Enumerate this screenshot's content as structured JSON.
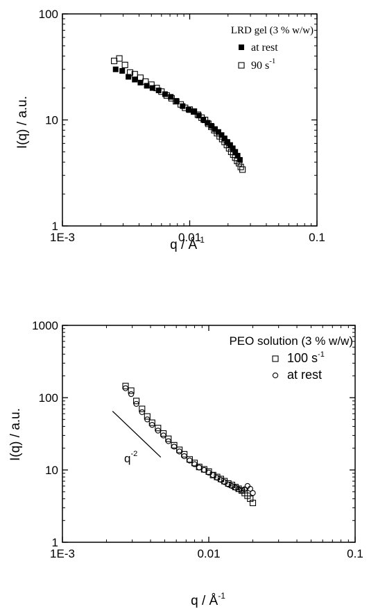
{
  "chart_data": [
    {
      "type": "scatter",
      "xscale": "log",
      "yscale": "log",
      "xlim": [
        0.001,
        0.1
      ],
      "ylim": [
        1,
        100
      ],
      "xlabel": "q / Å",
      "xlabel_sup": "-1",
      "ylabel": "I(q) / a.u.",
      "xticks": [
        {
          "value": 0.001,
          "label": "1E-3"
        },
        {
          "value": 0.01,
          "label": "0.01"
        },
        {
          "value": 0.1,
          "label": "0.1"
        }
      ],
      "yticks": [
        {
          "value": 1,
          "label": "1"
        },
        {
          "value": 10,
          "label": "10"
        },
        {
          "value": 100,
          "label": "100"
        }
      ],
      "legend": {
        "title": "LRD gel (3 % w/w)",
        "placement": "top-right",
        "entries": [
          {
            "series": 0,
            "text": "at rest",
            "sup": ""
          },
          {
            "series": 1,
            "text": "90 s",
            "sup": "-1"
          }
        ]
      },
      "series": [
        {
          "marker": "filled-square",
          "x": [
            0.00262,
            0.00295,
            0.0033,
            0.0037,
            0.0041,
            0.0046,
            0.0051,
            0.0057,
            0.0064,
            0.0071,
            0.0079,
            0.0088,
            0.0098,
            0.0108,
            0.0118,
            0.0128,
            0.0138,
            0.0148,
            0.0158,
            0.0168,
            0.0178,
            0.0188,
            0.0198,
            0.0208,
            0.0218,
            0.0228,
            0.0238,
            0.0248
          ],
          "y": [
            30,
            29,
            25.5,
            24,
            22.5,
            21,
            20,
            19,
            17.5,
            16.5,
            15,
            13.5,
            12.5,
            12,
            11,
            10,
            9.4,
            8.8,
            8.2,
            7.7,
            7.2,
            6.7,
            6.2,
            5.8,
            5.4,
            5.0,
            4.6,
            4.2
          ]
        },
        {
          "marker": "open-square",
          "x": [
            0.00255,
            0.0028,
            0.0031,
            0.0034,
            0.0037,
            0.0041,
            0.0045,
            0.005,
            0.0055,
            0.006,
            0.0066,
            0.0072,
            0.0078,
            0.0085,
            0.0092,
            0.01,
            0.0108,
            0.0116,
            0.0124,
            0.0132,
            0.014,
            0.0148,
            0.0156,
            0.0164,
            0.0172,
            0.018,
            0.0188,
            0.0196,
            0.0204,
            0.0212,
            0.022,
            0.0228,
            0.0236,
            0.0244,
            0.0252,
            0.026
          ],
          "y": [
            36,
            38,
            33,
            28,
            27,
            25,
            23,
            21.5,
            20,
            18.5,
            17,
            16,
            15,
            14,
            13,
            12.5,
            12,
            11.2,
            10.5,
            10,
            9.2,
            8.6,
            8.0,
            7.5,
            7.0,
            6.6,
            6.2,
            5.8,
            5.4,
            5.0,
            4.7,
            4.4,
            4.1,
            3.9,
            3.6,
            3.4
          ]
        }
      ]
    },
    {
      "type": "scatter",
      "xscale": "log",
      "yscale": "log",
      "xlim": [
        0.001,
        0.1
      ],
      "ylim": [
        1,
        1000
      ],
      "xlabel": "q / Å",
      "xlabel_sup": "-1",
      "ylabel": "I(q) / a.u.",
      "xticks": [
        {
          "value": 0.001,
          "label": "1E-3"
        },
        {
          "value": 0.01,
          "label": "0.01"
        },
        {
          "value": 0.1,
          "label": "0.1"
        }
      ],
      "yticks": [
        {
          "value": 1,
          "label": "1"
        },
        {
          "value": 10,
          "label": "10"
        },
        {
          "value": 100,
          "label": "100"
        },
        {
          "value": 1000,
          "label": "1000"
        }
      ],
      "legend": {
        "title": "PEO solution (3 % w/w)",
        "placement": "top-right",
        "entries": [
          {
            "series": 0,
            "text": "100 s",
            "sup": "-1"
          },
          {
            "series": 1,
            "text": "at rest",
            "sup": ""
          }
        ]
      },
      "annotation": {
        "text": "q",
        "sup": "-2",
        "line": {
          "x": [
            0.0022,
            0.0047
          ],
          "y": [
            65,
            15
          ]
        }
      },
      "series": [
        {
          "marker": "open-square",
          "x": [
            0.0027,
            0.00295,
            0.0032,
            0.0035,
            0.0038,
            0.0041,
            0.0045,
            0.0049,
            0.0053,
            0.0058,
            0.0063,
            0.0068,
            0.0074,
            0.008,
            0.0086,
            0.0093,
            0.01,
            0.0107,
            0.0114,
            0.0121,
            0.0128,
            0.0136,
            0.0144,
            0.0152,
            0.016,
            0.0168,
            0.0176,
            0.0184,
            0.0192,
            0.02
          ],
          "y": [
            145,
            125,
            90,
            70,
            55,
            45,
            38,
            32,
            27,
            22,
            19,
            16.5,
            14,
            12.5,
            11,
            10.2,
            9.5,
            8.5,
            8,
            7.5,
            7,
            6.5,
            6.2,
            5.8,
            5.5,
            5.2,
            4.8,
            4.4,
            4.0,
            3.5
          ]
        },
        {
          "marker": "open-circle",
          "x": [
            0.0027,
            0.00295,
            0.0032,
            0.0035,
            0.0038,
            0.0041,
            0.0045,
            0.0049,
            0.0053,
            0.0058,
            0.0063,
            0.0068,
            0.0074,
            0.008,
            0.0086,
            0.0093,
            0.01,
            0.0107,
            0.0114,
            0.0121,
            0.0128,
            0.0136,
            0.0144,
            0.0152,
            0.016,
            0.0168,
            0.0176,
            0.0184,
            0.0192,
            0.02
          ],
          "y": [
            135,
            112,
            82,
            63,
            50,
            42,
            35,
            30,
            25,
            21,
            18,
            15.5,
            13.5,
            12,
            10.8,
            10,
            9.2,
            8.5,
            7.8,
            7.3,
            6.8,
            6.3,
            6.0,
            5.7,
            5.4,
            5.2,
            5.4,
            6.0,
            5.5,
            4.8
          ]
        }
      ]
    }
  ]
}
